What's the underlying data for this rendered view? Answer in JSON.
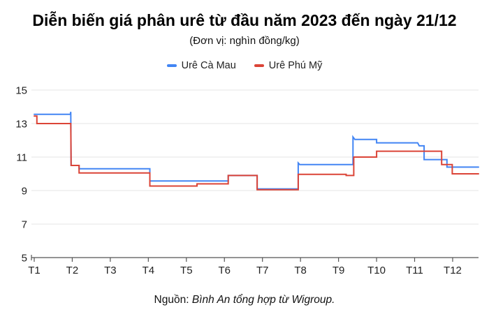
{
  "header": {
    "title": "Diễn biến giá phân urê từ đầu năm 2023 đến ngày 21/12",
    "subtitle": "(Đơn vị: nghìn đồng/kg)"
  },
  "legend": [
    {
      "label": "Urê Cà Mau",
      "color": "#4285F4"
    },
    {
      "label": "Urê Phú Mỹ",
      "color": "#DB4437"
    }
  ],
  "caption": {
    "prefix": "Nguồn: ",
    "text": "Bình An tổng hợp từ Wigroup."
  },
  "chart_data": {
    "type": "line",
    "title": "Diễn biến giá phân urê từ đầu năm 2023 đến ngày 21/12",
    "unit_label": "(Đơn vị: nghìn đồng/kg)",
    "x_ticks": [
      "T1",
      "T2",
      "T3",
      "T4",
      "T5",
      "T6",
      "T7",
      "T8",
      "T9",
      "T10",
      "T11",
      "T12"
    ],
    "y_ticks": [
      5,
      7,
      9,
      11,
      13,
      15
    ],
    "ylim": [
      5,
      15
    ],
    "xlim": [
      0.927,
      12.68
    ],
    "grid_on": true,
    "legend_position": "top",
    "grid_color": "#e4e4e4",
    "axis_color": "#555555",
    "label_color": "#222222",
    "line_width": 2,
    "series": [
      {
        "name": "Urê Cà Mau",
        "color": "#4285F4",
        "points": [
          [
            1.0,
            13.55
          ],
          [
            1.95,
            13.55
          ],
          [
            1.96,
            13.7
          ],
          [
            1.97,
            10.5
          ],
          [
            2.18,
            10.5
          ],
          [
            2.18,
            10.3
          ],
          [
            4.04,
            10.3
          ],
          [
            4.04,
            9.57
          ],
          [
            6.1,
            9.57
          ],
          [
            6.1,
            9.9
          ],
          [
            6.86,
            9.9
          ],
          [
            6.86,
            9.1
          ],
          [
            7.94,
            9.1
          ],
          [
            7.94,
            10.65
          ],
          [
            7.98,
            10.55
          ],
          [
            9.38,
            10.55
          ],
          [
            9.38,
            12.2
          ],
          [
            9.43,
            12.05
          ],
          [
            10.0,
            12.05
          ],
          [
            10.0,
            11.85
          ],
          [
            11.08,
            11.85
          ],
          [
            11.12,
            11.67
          ],
          [
            11.25,
            11.67
          ],
          [
            11.25,
            10.85
          ],
          [
            11.85,
            10.85
          ],
          [
            11.85,
            10.4
          ],
          [
            12.68,
            10.4
          ]
        ]
      },
      {
        "name": "Urê Phú Mỹ",
        "color": "#DB4437",
        "points": [
          [
            1.0,
            13.45
          ],
          [
            1.07,
            13.45
          ],
          [
            1.07,
            13.0
          ],
          [
            1.96,
            13.0
          ],
          [
            1.97,
            10.5
          ],
          [
            2.18,
            10.5
          ],
          [
            2.18,
            10.05
          ],
          [
            4.04,
            10.05
          ],
          [
            4.04,
            9.27
          ],
          [
            5.28,
            9.27
          ],
          [
            5.28,
            9.4
          ],
          [
            6.1,
            9.4
          ],
          [
            6.1,
            9.9
          ],
          [
            6.86,
            9.9
          ],
          [
            6.86,
            9.05
          ],
          [
            7.94,
            9.05
          ],
          [
            7.94,
            9.97
          ],
          [
            9.2,
            9.97
          ],
          [
            9.2,
            9.9
          ],
          [
            9.4,
            9.9
          ],
          [
            9.4,
            11.0
          ],
          [
            10.0,
            11.0
          ],
          [
            10.0,
            11.35
          ],
          [
            11.71,
            11.35
          ],
          [
            11.71,
            10.55
          ],
          [
            11.99,
            10.55
          ],
          [
            11.99,
            10.0
          ],
          [
            12.68,
            10.0
          ]
        ]
      }
    ]
  }
}
